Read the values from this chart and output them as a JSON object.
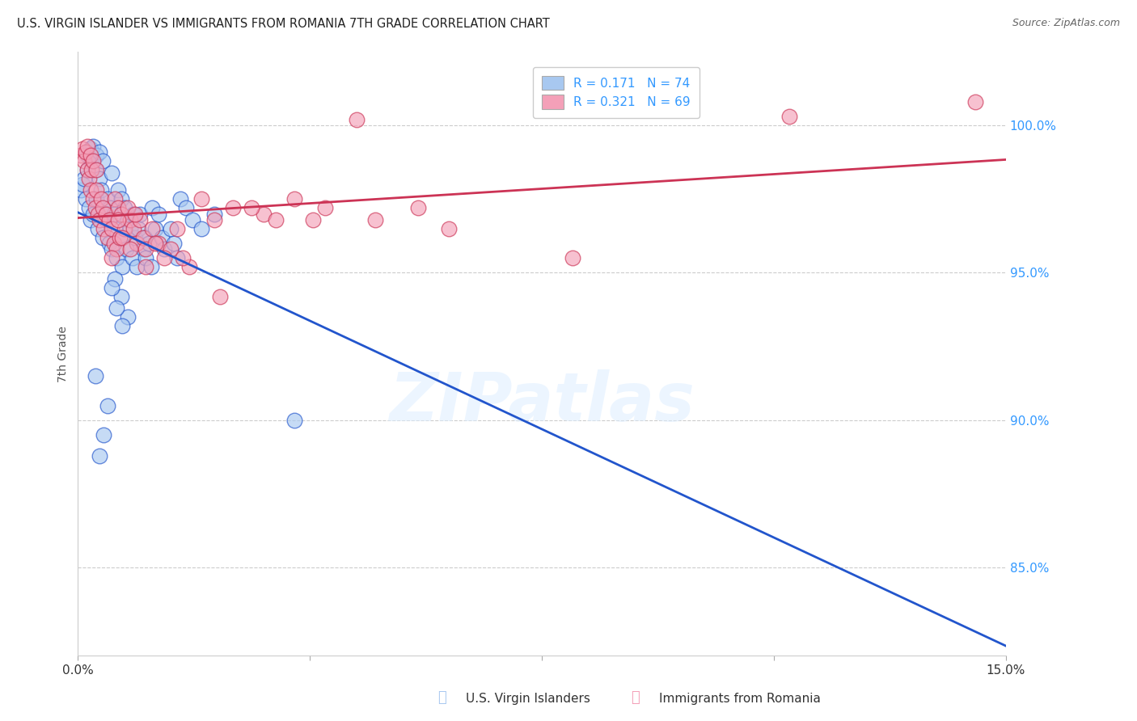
{
  "title": "U.S. VIRGIN ISLANDER VS IMMIGRANTS FROM ROMANIA 7TH GRADE CORRELATION CHART",
  "source": "Source: ZipAtlas.com",
  "ylabel": "7th Grade",
  "legend_entries": [
    {
      "label": "U.S. Virgin Islanders",
      "R": 0.171,
      "N": 74
    },
    {
      "label": "Immigrants from Romania",
      "R": 0.321,
      "N": 69
    }
  ],
  "blue_scatter_color": "#a8c8f0",
  "pink_scatter_color": "#f4a0b8",
  "line_blue": "#2255cc",
  "line_pink": "#cc3355",
  "watermark_text": "ZIPatlas",
  "xlim": [
    0.0,
    15.0
  ],
  "ylim": [
    82.0,
    102.5
  ],
  "ytick_vals": [
    85.0,
    90.0,
    95.0,
    100.0
  ],
  "blue_scatter_x": [
    0.05,
    0.08,
    0.1,
    0.12,
    0.15,
    0.15,
    0.18,
    0.2,
    0.2,
    0.22,
    0.25,
    0.25,
    0.28,
    0.3,
    0.3,
    0.32,
    0.35,
    0.35,
    0.38,
    0.4,
    0.4,
    0.42,
    0.45,
    0.48,
    0.5,
    0.52,
    0.55,
    0.55,
    0.58,
    0.6,
    0.62,
    0.65,
    0.68,
    0.7,
    0.72,
    0.75,
    0.78,
    0.8,
    0.85,
    0.88,
    0.9,
    0.92,
    0.95,
    0.98,
    1.0,
    1.05,
    1.08,
    1.1,
    1.15,
    1.18,
    1.2,
    1.25,
    1.3,
    1.35,
    1.4,
    1.5,
    1.55,
    1.6,
    1.65,
    1.75,
    1.85,
    2.0,
    2.2,
    0.6,
    0.7,
    0.8,
    3.5,
    0.55,
    0.62,
    0.72,
    0.28,
    0.35,
    0.42,
    0.48
  ],
  "blue_scatter_y": [
    97.8,
    98.0,
    98.2,
    97.5,
    98.5,
    99.0,
    97.2,
    96.8,
    99.2,
    98.8,
    97.0,
    99.3,
    98.5,
    97.5,
    99.0,
    96.5,
    98.2,
    99.1,
    97.8,
    96.2,
    98.8,
    97.0,
    96.8,
    97.5,
    96.0,
    97.2,
    95.8,
    98.4,
    97.0,
    96.5,
    95.5,
    97.8,
    96.2,
    97.5,
    95.2,
    97.2,
    95.8,
    96.8,
    96.5,
    95.5,
    97.0,
    96.2,
    95.2,
    96.5,
    97.0,
    95.8,
    96.2,
    95.5,
    96.0,
    95.2,
    97.2,
    96.5,
    97.0,
    96.2,
    95.8,
    96.5,
    96.0,
    95.5,
    97.5,
    97.2,
    96.8,
    96.5,
    97.0,
    94.8,
    94.2,
    93.5,
    90.0,
    94.5,
    93.8,
    93.2,
    91.5,
    88.8,
    89.5,
    90.5
  ],
  "pink_scatter_x": [
    0.05,
    0.08,
    0.1,
    0.12,
    0.15,
    0.15,
    0.18,
    0.2,
    0.2,
    0.22,
    0.25,
    0.25,
    0.28,
    0.3,
    0.3,
    0.32,
    0.35,
    0.38,
    0.4,
    0.42,
    0.45,
    0.48,
    0.5,
    0.55,
    0.58,
    0.6,
    0.62,
    0.65,
    0.68,
    0.7,
    0.75,
    0.8,
    0.85,
    0.9,
    0.95,
    1.0,
    1.05,
    1.1,
    1.2,
    1.3,
    1.5,
    1.6,
    2.0,
    2.2,
    2.5,
    3.0,
    3.5,
    3.8,
    4.0,
    4.5,
    8.0,
    11.5,
    14.5,
    0.55,
    0.65,
    0.72,
    0.85,
    0.92,
    1.1,
    1.25,
    1.4,
    2.8,
    3.2,
    5.5,
    6.0,
    4.8,
    2.3,
    1.8,
    1.7
  ],
  "pink_scatter_y": [
    99.0,
    99.2,
    98.8,
    99.1,
    98.5,
    99.3,
    98.2,
    97.8,
    99.0,
    98.5,
    97.5,
    98.8,
    97.2,
    97.8,
    98.5,
    97.0,
    96.8,
    97.5,
    97.2,
    96.5,
    97.0,
    96.2,
    96.8,
    96.5,
    96.0,
    97.5,
    95.8,
    97.2,
    96.2,
    97.0,
    96.5,
    97.2,
    96.8,
    96.5,
    96.0,
    96.8,
    96.2,
    95.8,
    96.5,
    96.0,
    95.8,
    96.5,
    97.5,
    96.8,
    97.2,
    97.0,
    97.5,
    96.8,
    97.2,
    100.2,
    95.5,
    100.3,
    100.8,
    95.5,
    96.8,
    96.2,
    95.8,
    97.0,
    95.2,
    96.0,
    95.5,
    97.2,
    96.8,
    97.2,
    96.5,
    96.8,
    94.2,
    95.2,
    95.5
  ],
  "title_fontsize": 10.5,
  "source_fontsize": 9,
  "ylabel_fontsize": 10,
  "tick_fontsize": 11,
  "legend_fontsize": 11,
  "tick_color_x": "#333333",
  "tick_color_y": "#3399ff",
  "grid_color": "#cccccc",
  "axis_label_color": "#555555",
  "background_color": "#ffffff"
}
